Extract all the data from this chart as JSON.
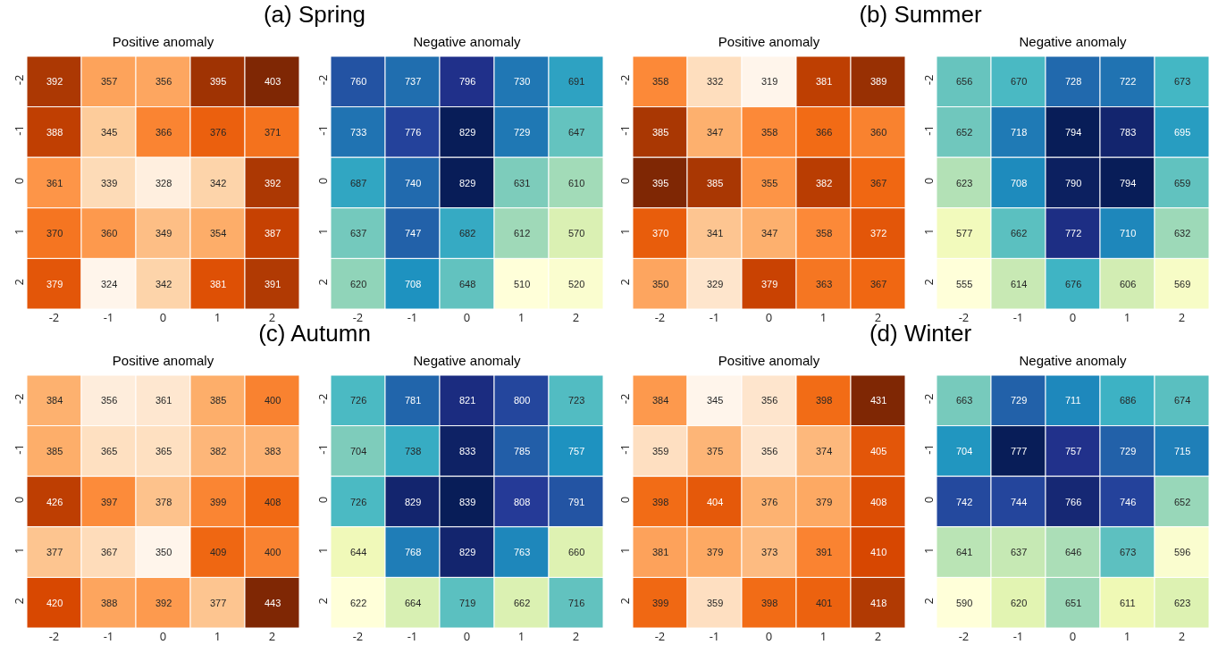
{
  "chart_data": [
    {
      "type": "heatmap",
      "annotations": [
        "(a) Spring"
      ],
      "title": "Positive anomaly",
      "categories": [
        "-2",
        "-1",
        "0",
        "1",
        "2"
      ],
      "y_categories": [
        "-2",
        "-1",
        "0",
        "1",
        "2"
      ],
      "colors": [
        "#fff5eb",
        "#fee6ce",
        "#fdd0a2",
        "#fdae6b",
        "#fd8d3c",
        "#f16913",
        "#d94801",
        "#a63603",
        "#7f2704"
      ],
      "data_labels": true,
      "cells": [
        [
          392,
          357,
          356,
          395,
          403
        ],
        [
          388,
          345,
          366,
          376,
          371
        ],
        [
          361,
          339,
          328,
          342,
          392
        ],
        [
          370,
          360,
          349,
          354,
          387
        ],
        [
          379,
          324,
          342,
          381,
          391
        ]
      ]
    },
    {
      "type": "heatmap",
      "title": "Negative anomaly",
      "categories": [
        "-2",
        "-1",
        "0",
        "1",
        "2"
      ],
      "y_categories": [
        "-2",
        "-1",
        "0",
        "1",
        "2"
      ],
      "colors": [
        "#ffffd9",
        "#edf8b1",
        "#c7e9b4",
        "#7fcdbb",
        "#41b6c4",
        "#1d91c0",
        "#225ea8",
        "#253494",
        "#081d58"
      ],
      "data_labels": true,
      "cells": [
        [
          760,
          737,
          796,
          730,
          691
        ],
        [
          733,
          776,
          829,
          729,
          647
        ],
        [
          687,
          740,
          829,
          631,
          610
        ],
        [
          637,
          747,
          682,
          612,
          570
        ],
        [
          620,
          708,
          648,
          510,
          520
        ]
      ]
    },
    {
      "type": "heatmap",
      "annotations": [
        "(b) Summer"
      ],
      "title": "Positive anomaly",
      "categories": [
        "-2",
        "-1",
        "0",
        "1",
        "2"
      ],
      "y_categories": [
        "-2",
        "-1",
        "0",
        "1",
        "2"
      ],
      "colors": [
        "#fff5eb",
        "#fee6ce",
        "#fdd0a2",
        "#fdae6b",
        "#fd8d3c",
        "#f16913",
        "#d94801",
        "#a63603",
        "#7f2704"
      ],
      "data_labels": true,
      "cells": [
        [
          358,
          332,
          319,
          381,
          389
        ],
        [
          385,
          347,
          358,
          366,
          360
        ],
        [
          395,
          385,
          355,
          382,
          367
        ],
        [
          370,
          341,
          347,
          358,
          372
        ],
        [
          350,
          329,
          379,
          363,
          367
        ]
      ]
    },
    {
      "type": "heatmap",
      "title": "Negative anomaly",
      "categories": [
        "-2",
        "-1",
        "0",
        "1",
        "2"
      ],
      "y_categories": [
        "-2",
        "-1",
        "0",
        "1",
        "2"
      ],
      "colors": [
        "#ffffd9",
        "#edf8b1",
        "#c7e9b4",
        "#7fcdbb",
        "#41b6c4",
        "#1d91c0",
        "#225ea8",
        "#253494",
        "#081d58"
      ],
      "data_labels": true,
      "cells": [
        [
          656,
          670,
          728,
          722,
          673
        ],
        [
          652,
          718,
          794,
          783,
          695
        ],
        [
          623,
          708,
          790,
          794,
          659
        ],
        [
          577,
          662,
          772,
          710,
          632
        ],
        [
          555,
          614,
          676,
          606,
          569
        ]
      ]
    },
    {
      "type": "heatmap",
      "annotations": [
        "(c) Autumn"
      ],
      "title": "Positive anomaly",
      "categories": [
        "-2",
        "-1",
        "0",
        "1",
        "2"
      ],
      "y_categories": [
        "-2",
        "-1",
        "0",
        "1",
        "2"
      ],
      "colors": [
        "#fff5eb",
        "#fee6ce",
        "#fdd0a2",
        "#fdae6b",
        "#fd8d3c",
        "#f16913",
        "#d94801",
        "#a63603",
        "#7f2704"
      ],
      "data_labels": true,
      "cells": [
        [
          384,
          356,
          361,
          385,
          400
        ],
        [
          385,
          365,
          365,
          382,
          383
        ],
        [
          426,
          397,
          378,
          399,
          408
        ],
        [
          377,
          367,
          350,
          409,
          400
        ],
        [
          420,
          388,
          392,
          377,
          443
        ]
      ]
    },
    {
      "type": "heatmap",
      "title": "Negative anomaly",
      "categories": [
        "-2",
        "-1",
        "0",
        "1",
        "2"
      ],
      "y_categories": [
        "-2",
        "-1",
        "0",
        "1",
        "2"
      ],
      "colors": [
        "#ffffd9",
        "#edf8b1",
        "#c7e9b4",
        "#7fcdbb",
        "#41b6c4",
        "#1d91c0",
        "#225ea8",
        "#253494",
        "#081d58"
      ],
      "data_labels": true,
      "cells": [
        [
          726,
          781,
          821,
          800,
          723
        ],
        [
          704,
          738,
          833,
          785,
          757
        ],
        [
          726,
          829,
          839,
          808,
          791
        ],
        [
          644,
          768,
          829,
          763,
          660
        ],
        [
          622,
          664,
          719,
          662,
          716
        ]
      ]
    },
    {
      "type": "heatmap",
      "annotations": [
        "(d) Winter"
      ],
      "title": "Positive anomaly",
      "categories": [
        "-2",
        "-1",
        "0",
        "1",
        "2"
      ],
      "y_categories": [
        "-2",
        "-1",
        "0",
        "1",
        "2"
      ],
      "colors": [
        "#fff5eb",
        "#fee6ce",
        "#fdd0a2",
        "#fdae6b",
        "#fd8d3c",
        "#f16913",
        "#d94801",
        "#a63603",
        "#7f2704"
      ],
      "data_labels": true,
      "cells": [
        [
          384,
          345,
          356,
          398,
          431
        ],
        [
          359,
          375,
          356,
          374,
          405
        ],
        [
          398,
          404,
          376,
          379,
          408
        ],
        [
          381,
          379,
          373,
          391,
          410
        ],
        [
          399,
          359,
          398,
          401,
          418
        ]
      ]
    },
    {
      "type": "heatmap",
      "title": "Negative anomaly",
      "categories": [
        "-2",
        "-1",
        "0",
        "1",
        "2"
      ],
      "y_categories": [
        "-2",
        "-1",
        "0",
        "1",
        "2"
      ],
      "colors": [
        "#ffffd9",
        "#edf8b1",
        "#c7e9b4",
        "#7fcdbb",
        "#41b6c4",
        "#1d91c0",
        "#225ea8",
        "#253494",
        "#081d58"
      ],
      "data_labels": true,
      "cells": [
        [
          663,
          729,
          711,
          686,
          674
        ],
        [
          704,
          777,
          757,
          729,
          715
        ],
        [
          742,
          744,
          766,
          746,
          652
        ],
        [
          641,
          637,
          646,
          673,
          596
        ],
        [
          590,
          620,
          651,
          611,
          623
        ]
      ]
    }
  ]
}
